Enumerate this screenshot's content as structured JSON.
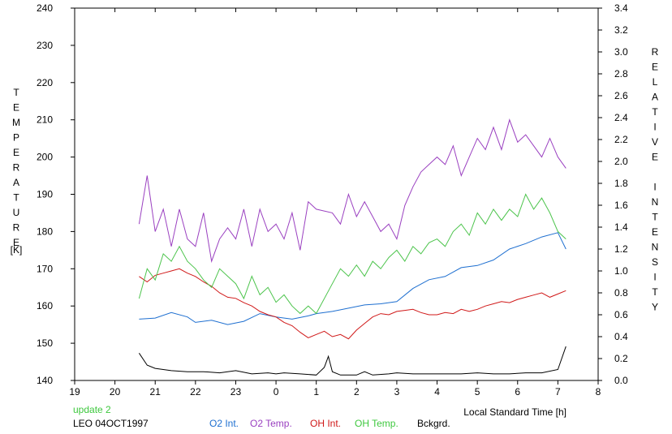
{
  "chart_data": {
    "type": "line",
    "title": "",
    "ylabel_left": "TEMPERATURE",
    "ylabel_left_unit": "[K]",
    "ylabel_right": "RELATIVE INTENSITY",
    "xlabel": "Local Standard Time [h]",
    "x_ticks": [
      "19",
      "20",
      "21",
      "22",
      "23",
      "0",
      "1",
      "2",
      "3",
      "4",
      "5",
      "6",
      "7",
      "8"
    ],
    "y_left_ticks": [
      "140",
      "150",
      "160",
      "170",
      "180",
      "190",
      "200",
      "210",
      "220",
      "230",
      "240"
    ],
    "y_right_ticks": [
      "0.0",
      "0.2",
      "0.4",
      "0.6",
      "0.8",
      "1.0",
      "1.2",
      "1.4",
      "1.6",
      "1.8",
      "2.0",
      "2.2",
      "2.4",
      "2.6",
      "2.8",
      "3.0",
      "3.2",
      "3.4"
    ],
    "xlim": [
      19,
      32
    ],
    "ylim_left": [
      140,
      240
    ],
    "ylim_right": [
      0.0,
      3.4
    ],
    "grid": false,
    "legend_position": "bottom",
    "series": [
      {
        "name": "O2 Int.",
        "axis": "right",
        "color": "#1e6fd0",
        "points": [
          [
            20.6,
            0.56
          ],
          [
            21.0,
            0.57
          ],
          [
            21.4,
            0.62
          ],
          [
            21.8,
            0.58
          ],
          [
            22.0,
            0.53
          ],
          [
            22.4,
            0.55
          ],
          [
            22.8,
            0.51
          ],
          [
            23.2,
            0.54
          ],
          [
            23.6,
            0.61
          ],
          [
            24.0,
            0.58
          ],
          [
            24.4,
            0.56
          ],
          [
            24.8,
            0.59
          ],
          [
            25.0,
            0.61
          ],
          [
            25.4,
            0.63
          ],
          [
            25.8,
            0.66
          ],
          [
            26.2,
            0.69
          ],
          [
            26.6,
            0.7
          ],
          [
            27.0,
            0.72
          ],
          [
            27.4,
            0.84
          ],
          [
            27.8,
            0.92
          ],
          [
            28.2,
            0.95
          ],
          [
            28.6,
            1.03
          ],
          [
            29.0,
            1.05
          ],
          [
            29.4,
            1.1
          ],
          [
            29.8,
            1.2
          ],
          [
            30.2,
            1.25
          ],
          [
            30.6,
            1.31
          ],
          [
            31.0,
            1.35
          ],
          [
            31.2,
            1.2
          ]
        ]
      },
      {
        "name": "O2 Temp.",
        "axis": "left",
        "color": "#9a40c0",
        "points": [
          [
            20.6,
            182
          ],
          [
            20.8,
            195
          ],
          [
            21.0,
            180
          ],
          [
            21.2,
            186
          ],
          [
            21.4,
            176
          ],
          [
            21.6,
            186
          ],
          [
            21.8,
            178
          ],
          [
            22.0,
            176
          ],
          [
            22.2,
            185
          ],
          [
            22.4,
            172
          ],
          [
            22.6,
            178
          ],
          [
            22.8,
            181
          ],
          [
            23.0,
            178
          ],
          [
            23.2,
            186
          ],
          [
            23.4,
            176
          ],
          [
            23.6,
            186
          ],
          [
            23.8,
            180
          ],
          [
            24.0,
            182
          ],
          [
            24.2,
            178
          ],
          [
            24.4,
            185
          ],
          [
            24.6,
            175
          ],
          [
            24.8,
            188
          ],
          [
            25.0,
            186
          ],
          [
            25.4,
            185
          ],
          [
            25.6,
            182
          ],
          [
            25.8,
            190
          ],
          [
            26.0,
            184
          ],
          [
            26.2,
            188
          ],
          [
            26.4,
            184
          ],
          [
            26.6,
            180
          ],
          [
            26.8,
            182
          ],
          [
            27.0,
            178
          ],
          [
            27.2,
            187
          ],
          [
            27.4,
            192
          ],
          [
            27.6,
            196
          ],
          [
            27.8,
            198
          ],
          [
            28.0,
            200
          ],
          [
            28.2,
            198
          ],
          [
            28.4,
            203
          ],
          [
            28.6,
            195
          ],
          [
            28.8,
            200
          ],
          [
            29.0,
            205
          ],
          [
            29.2,
            202
          ],
          [
            29.4,
            208
          ],
          [
            29.6,
            202
          ],
          [
            29.8,
            210
          ],
          [
            30.0,
            204
          ],
          [
            30.2,
            206
          ],
          [
            30.4,
            203
          ],
          [
            30.6,
            200
          ],
          [
            30.8,
            205
          ],
          [
            31.0,
            200
          ],
          [
            31.2,
            197
          ]
        ]
      },
      {
        "name": "OH Int.",
        "axis": "right",
        "color": "#d01818",
        "points": [
          [
            20.6,
            0.95
          ],
          [
            20.8,
            0.9
          ],
          [
            21.0,
            0.96
          ],
          [
            21.2,
            0.98
          ],
          [
            21.4,
            1.0
          ],
          [
            21.6,
            1.02
          ],
          [
            21.8,
            0.98
          ],
          [
            22.0,
            0.95
          ],
          [
            22.2,
            0.9
          ],
          [
            22.4,
            0.86
          ],
          [
            22.6,
            0.8
          ],
          [
            22.8,
            0.76
          ],
          [
            23.0,
            0.75
          ],
          [
            23.2,
            0.71
          ],
          [
            23.4,
            0.68
          ],
          [
            23.6,
            0.63
          ],
          [
            23.8,
            0.6
          ],
          [
            24.0,
            0.58
          ],
          [
            24.2,
            0.53
          ],
          [
            24.4,
            0.5
          ],
          [
            24.6,
            0.44
          ],
          [
            24.8,
            0.39
          ],
          [
            25.0,
            0.42
          ],
          [
            25.2,
            0.45
          ],
          [
            25.4,
            0.4
          ],
          [
            25.6,
            0.42
          ],
          [
            25.8,
            0.38
          ],
          [
            26.0,
            0.46
          ],
          [
            26.2,
            0.52
          ],
          [
            26.4,
            0.58
          ],
          [
            26.6,
            0.61
          ],
          [
            26.8,
            0.6
          ],
          [
            27.0,
            0.63
          ],
          [
            27.2,
            0.64
          ],
          [
            27.4,
            0.65
          ],
          [
            27.6,
            0.62
          ],
          [
            27.8,
            0.6
          ],
          [
            28.0,
            0.6
          ],
          [
            28.2,
            0.62
          ],
          [
            28.4,
            0.61
          ],
          [
            28.6,
            0.65
          ],
          [
            28.8,
            0.63
          ],
          [
            29.0,
            0.65
          ],
          [
            29.2,
            0.68
          ],
          [
            29.4,
            0.7
          ],
          [
            29.6,
            0.72
          ],
          [
            29.8,
            0.71
          ],
          [
            30.0,
            0.74
          ],
          [
            30.2,
            0.76
          ],
          [
            30.4,
            0.78
          ],
          [
            30.6,
            0.8
          ],
          [
            30.8,
            0.76
          ],
          [
            31.0,
            0.79
          ],
          [
            31.2,
            0.82
          ]
        ]
      },
      {
        "name": "OH Temp.",
        "axis": "left",
        "color": "#4cc44c",
        "points": [
          [
            20.6,
            162
          ],
          [
            20.8,
            170
          ],
          [
            21.0,
            167
          ],
          [
            21.2,
            174
          ],
          [
            21.4,
            172
          ],
          [
            21.6,
            176
          ],
          [
            21.8,
            172
          ],
          [
            22.0,
            170
          ],
          [
            22.2,
            167
          ],
          [
            22.4,
            165
          ],
          [
            22.6,
            170
          ],
          [
            22.8,
            168
          ],
          [
            23.0,
            166
          ],
          [
            23.2,
            162
          ],
          [
            23.4,
            168
          ],
          [
            23.6,
            163
          ],
          [
            23.8,
            165
          ],
          [
            24.0,
            161
          ],
          [
            24.2,
            163
          ],
          [
            24.4,
            160
          ],
          [
            24.6,
            158
          ],
          [
            24.8,
            160
          ],
          [
            25.0,
            158
          ],
          [
            25.4,
            166
          ],
          [
            25.6,
            170
          ],
          [
            25.8,
            168
          ],
          [
            26.0,
            171
          ],
          [
            26.2,
            168
          ],
          [
            26.4,
            172
          ],
          [
            26.6,
            170
          ],
          [
            26.8,
            173
          ],
          [
            27.0,
            175
          ],
          [
            27.2,
            172
          ],
          [
            27.4,
            176
          ],
          [
            27.6,
            174
          ],
          [
            27.8,
            177
          ],
          [
            28.0,
            178
          ],
          [
            28.2,
            176
          ],
          [
            28.4,
            180
          ],
          [
            28.6,
            182
          ],
          [
            28.8,
            179
          ],
          [
            29.0,
            185
          ],
          [
            29.2,
            182
          ],
          [
            29.4,
            186
          ],
          [
            29.6,
            183
          ],
          [
            29.8,
            186
          ],
          [
            30.0,
            184
          ],
          [
            30.2,
            190
          ],
          [
            30.4,
            186
          ],
          [
            30.6,
            189
          ],
          [
            30.8,
            185
          ],
          [
            31.0,
            180
          ],
          [
            31.2,
            178
          ]
        ]
      },
      {
        "name": "Bckgrd.",
        "axis": "right",
        "color": "#000000",
        "points": [
          [
            20.6,
            0.25
          ],
          [
            20.8,
            0.14
          ],
          [
            21.0,
            0.11
          ],
          [
            21.4,
            0.09
          ],
          [
            21.8,
            0.08
          ],
          [
            22.2,
            0.08
          ],
          [
            22.6,
            0.07
          ],
          [
            23.0,
            0.09
          ],
          [
            23.4,
            0.06
          ],
          [
            23.8,
            0.07
          ],
          [
            24.0,
            0.06
          ],
          [
            24.2,
            0.07
          ],
          [
            24.6,
            0.06
          ],
          [
            25.0,
            0.05
          ],
          [
            25.2,
            0.12
          ],
          [
            25.3,
            0.22
          ],
          [
            25.4,
            0.08
          ],
          [
            25.6,
            0.05
          ],
          [
            26.0,
            0.05
          ],
          [
            26.2,
            0.08
          ],
          [
            26.4,
            0.05
          ],
          [
            26.8,
            0.06
          ],
          [
            27.0,
            0.07
          ],
          [
            27.4,
            0.06
          ],
          [
            27.8,
            0.06
          ],
          [
            28.2,
            0.06
          ],
          [
            28.6,
            0.06
          ],
          [
            29.0,
            0.07
          ],
          [
            29.4,
            0.06
          ],
          [
            29.8,
            0.06
          ],
          [
            30.2,
            0.07
          ],
          [
            30.6,
            0.07
          ],
          [
            31.0,
            0.1
          ],
          [
            31.2,
            0.31
          ]
        ]
      }
    ]
  },
  "legend": {
    "update": "update 2",
    "station": "LEO 04OCT1997",
    "items": [
      {
        "label": "O2 Int.",
        "color": "#1e6fd0"
      },
      {
        "label": "O2 Temp.",
        "color": "#9a40c0"
      },
      {
        "label": "OH Int.",
        "color": "#d01818"
      },
      {
        "label": "OH Temp.",
        "color": "#4cc44c"
      },
      {
        "label": "Bckgrd.",
        "color": "#000000"
      }
    ]
  }
}
